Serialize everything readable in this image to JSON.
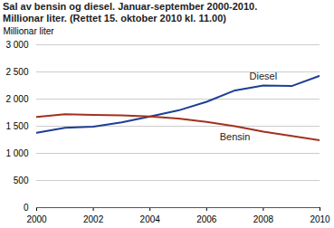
{
  "chart_data": {
    "type": "line",
    "title": "Sal av bensin og diesel. Januar-september 2000-2010.",
    "subtitle": "Millionar liter. (Rettet 15. oktober 2010 kl. 11.00)",
    "y_label": "Millionar liter",
    "x": [
      2000,
      2001,
      2002,
      2003,
      2004,
      2005,
      2006,
      2007,
      2008,
      2009,
      2010
    ],
    "series": [
      {
        "name": "Diesel",
        "color": "#1c3f94",
        "values": [
          1380,
          1470,
          1490,
          1570,
          1680,
          1790,
          1950,
          2160,
          2250,
          2240,
          2430
        ]
      },
      {
        "name": "Bensin",
        "color": "#a0321e",
        "values": [
          1670,
          1720,
          1710,
          1700,
          1680,
          1640,
          1580,
          1500,
          1400,
          1320,
          1240
        ]
      }
    ],
    "xlim": [
      2000,
      2010
    ],
    "xticks": [
      2000,
      2002,
      2004,
      2006,
      2008,
      2010
    ],
    "ylim": [
      0,
      3000
    ],
    "yticks": [
      0,
      500,
      {
        "value": 1000,
        "label": "1 000"
      },
      {
        "value": 1500,
        "label": "1 500"
      },
      {
        "value": 2000,
        "label": "2 000"
      },
      {
        "value": 2500,
        "label": "2 500"
      },
      {
        "value": 3000,
        "label": "3 000"
      }
    ],
    "grid": true
  }
}
